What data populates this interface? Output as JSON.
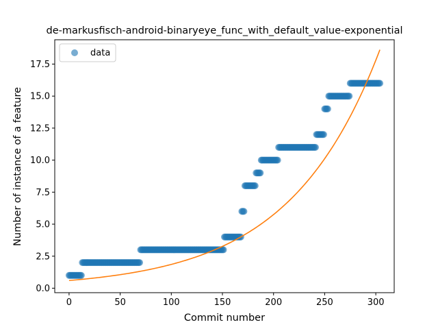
{
  "chart_data": {
    "type": "scatter",
    "title": "de-markusfisch-android-binaryeye_func_with_default_value-exponential",
    "xlabel": "Commit number",
    "ylabel": "Number of instance of a feature",
    "xlim": [
      -14,
      318
    ],
    "ylim": [
      -0.35,
      19.4
    ],
    "xticks": [
      0,
      50,
      100,
      150,
      200,
      250,
      300
    ],
    "yticks": [
      0.0,
      2.5,
      5.0,
      7.5,
      10.0,
      12.5,
      15.0,
      17.5
    ],
    "xtick_labels": [
      "0",
      "50",
      "100",
      "150",
      "200",
      "250",
      "300"
    ],
    "ytick_labels": [
      "0.0",
      "2.5",
      "5.0",
      "7.5",
      "10.0",
      "12.5",
      "15.0",
      "17.5"
    ],
    "legend": {
      "position": "upper-left",
      "entries": [
        "data"
      ]
    },
    "grid": false,
    "colors": {
      "data": "#1f77b4",
      "fit": "#ff7f0e"
    },
    "series": [
      {
        "name": "data",
        "kind": "points",
        "segments": [
          {
            "x_start": 0,
            "x_end": 12,
            "y": 1
          },
          {
            "x_start": 13,
            "x_end": 69,
            "y": 2
          },
          {
            "x_start": 70,
            "x_end": 151,
            "y": 3
          },
          {
            "x_start": 152,
            "x_end": 168,
            "y": 4
          },
          {
            "x_start": 169,
            "x_end": 171,
            "y": 6
          },
          {
            "x_start": 172,
            "x_end": 182,
            "y": 8
          },
          {
            "x_start": 183,
            "x_end": 187,
            "y": 9
          },
          {
            "x_start": 188,
            "x_end": 204,
            "y": 10
          },
          {
            "x_start": 205,
            "x_end": 241,
            "y": 11
          },
          {
            "x_start": 242,
            "x_end": 249,
            "y": 12
          },
          {
            "x_start": 250,
            "x_end": 253,
            "y": 14
          },
          {
            "x_start": 254,
            "x_end": 274,
            "y": 15
          },
          {
            "x_start": 275,
            "x_end": 304,
            "y": 16
          }
        ]
      },
      {
        "kind": "line",
        "model": "exponential",
        "a": 0.6,
        "b": 0.0113,
        "x_range": [
          0,
          304
        ]
      }
    ]
  }
}
